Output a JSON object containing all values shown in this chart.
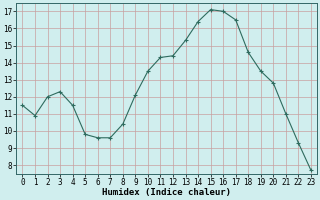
{
  "x": [
    0,
    1,
    2,
    3,
    4,
    5,
    6,
    7,
    8,
    9,
    10,
    11,
    12,
    13,
    14,
    15,
    16,
    17,
    18,
    19,
    20,
    21,
    22,
    23
  ],
  "y": [
    11.5,
    10.9,
    12.0,
    12.3,
    11.5,
    9.8,
    9.6,
    9.6,
    10.4,
    12.1,
    13.5,
    14.3,
    14.4,
    15.3,
    16.4,
    17.1,
    17.0,
    16.5,
    14.6,
    13.5,
    12.8,
    11.0,
    9.3,
    7.7
  ],
  "line_color": "#2e6b5e",
  "marker": "+",
  "marker_size": 3,
  "bg_color": "#d0eeee",
  "grid_color": "#c8a0a0",
  "xlabel": "Humidex (Indice chaleur)",
  "xlim": [
    -0.5,
    23.5
  ],
  "ylim": [
    7.5,
    17.5
  ],
  "yticks": [
    8,
    9,
    10,
    11,
    12,
    13,
    14,
    15,
    16,
    17
  ],
  "xticks": [
    0,
    1,
    2,
    3,
    4,
    5,
    6,
    7,
    8,
    9,
    10,
    11,
    12,
    13,
    14,
    15,
    16,
    17,
    18,
    19,
    20,
    21,
    22,
    23
  ],
  "tick_fontsize": 5.5,
  "xlabel_fontsize": 6.5,
  "line_width": 0.8,
  "marker_edge_width": 0.8
}
